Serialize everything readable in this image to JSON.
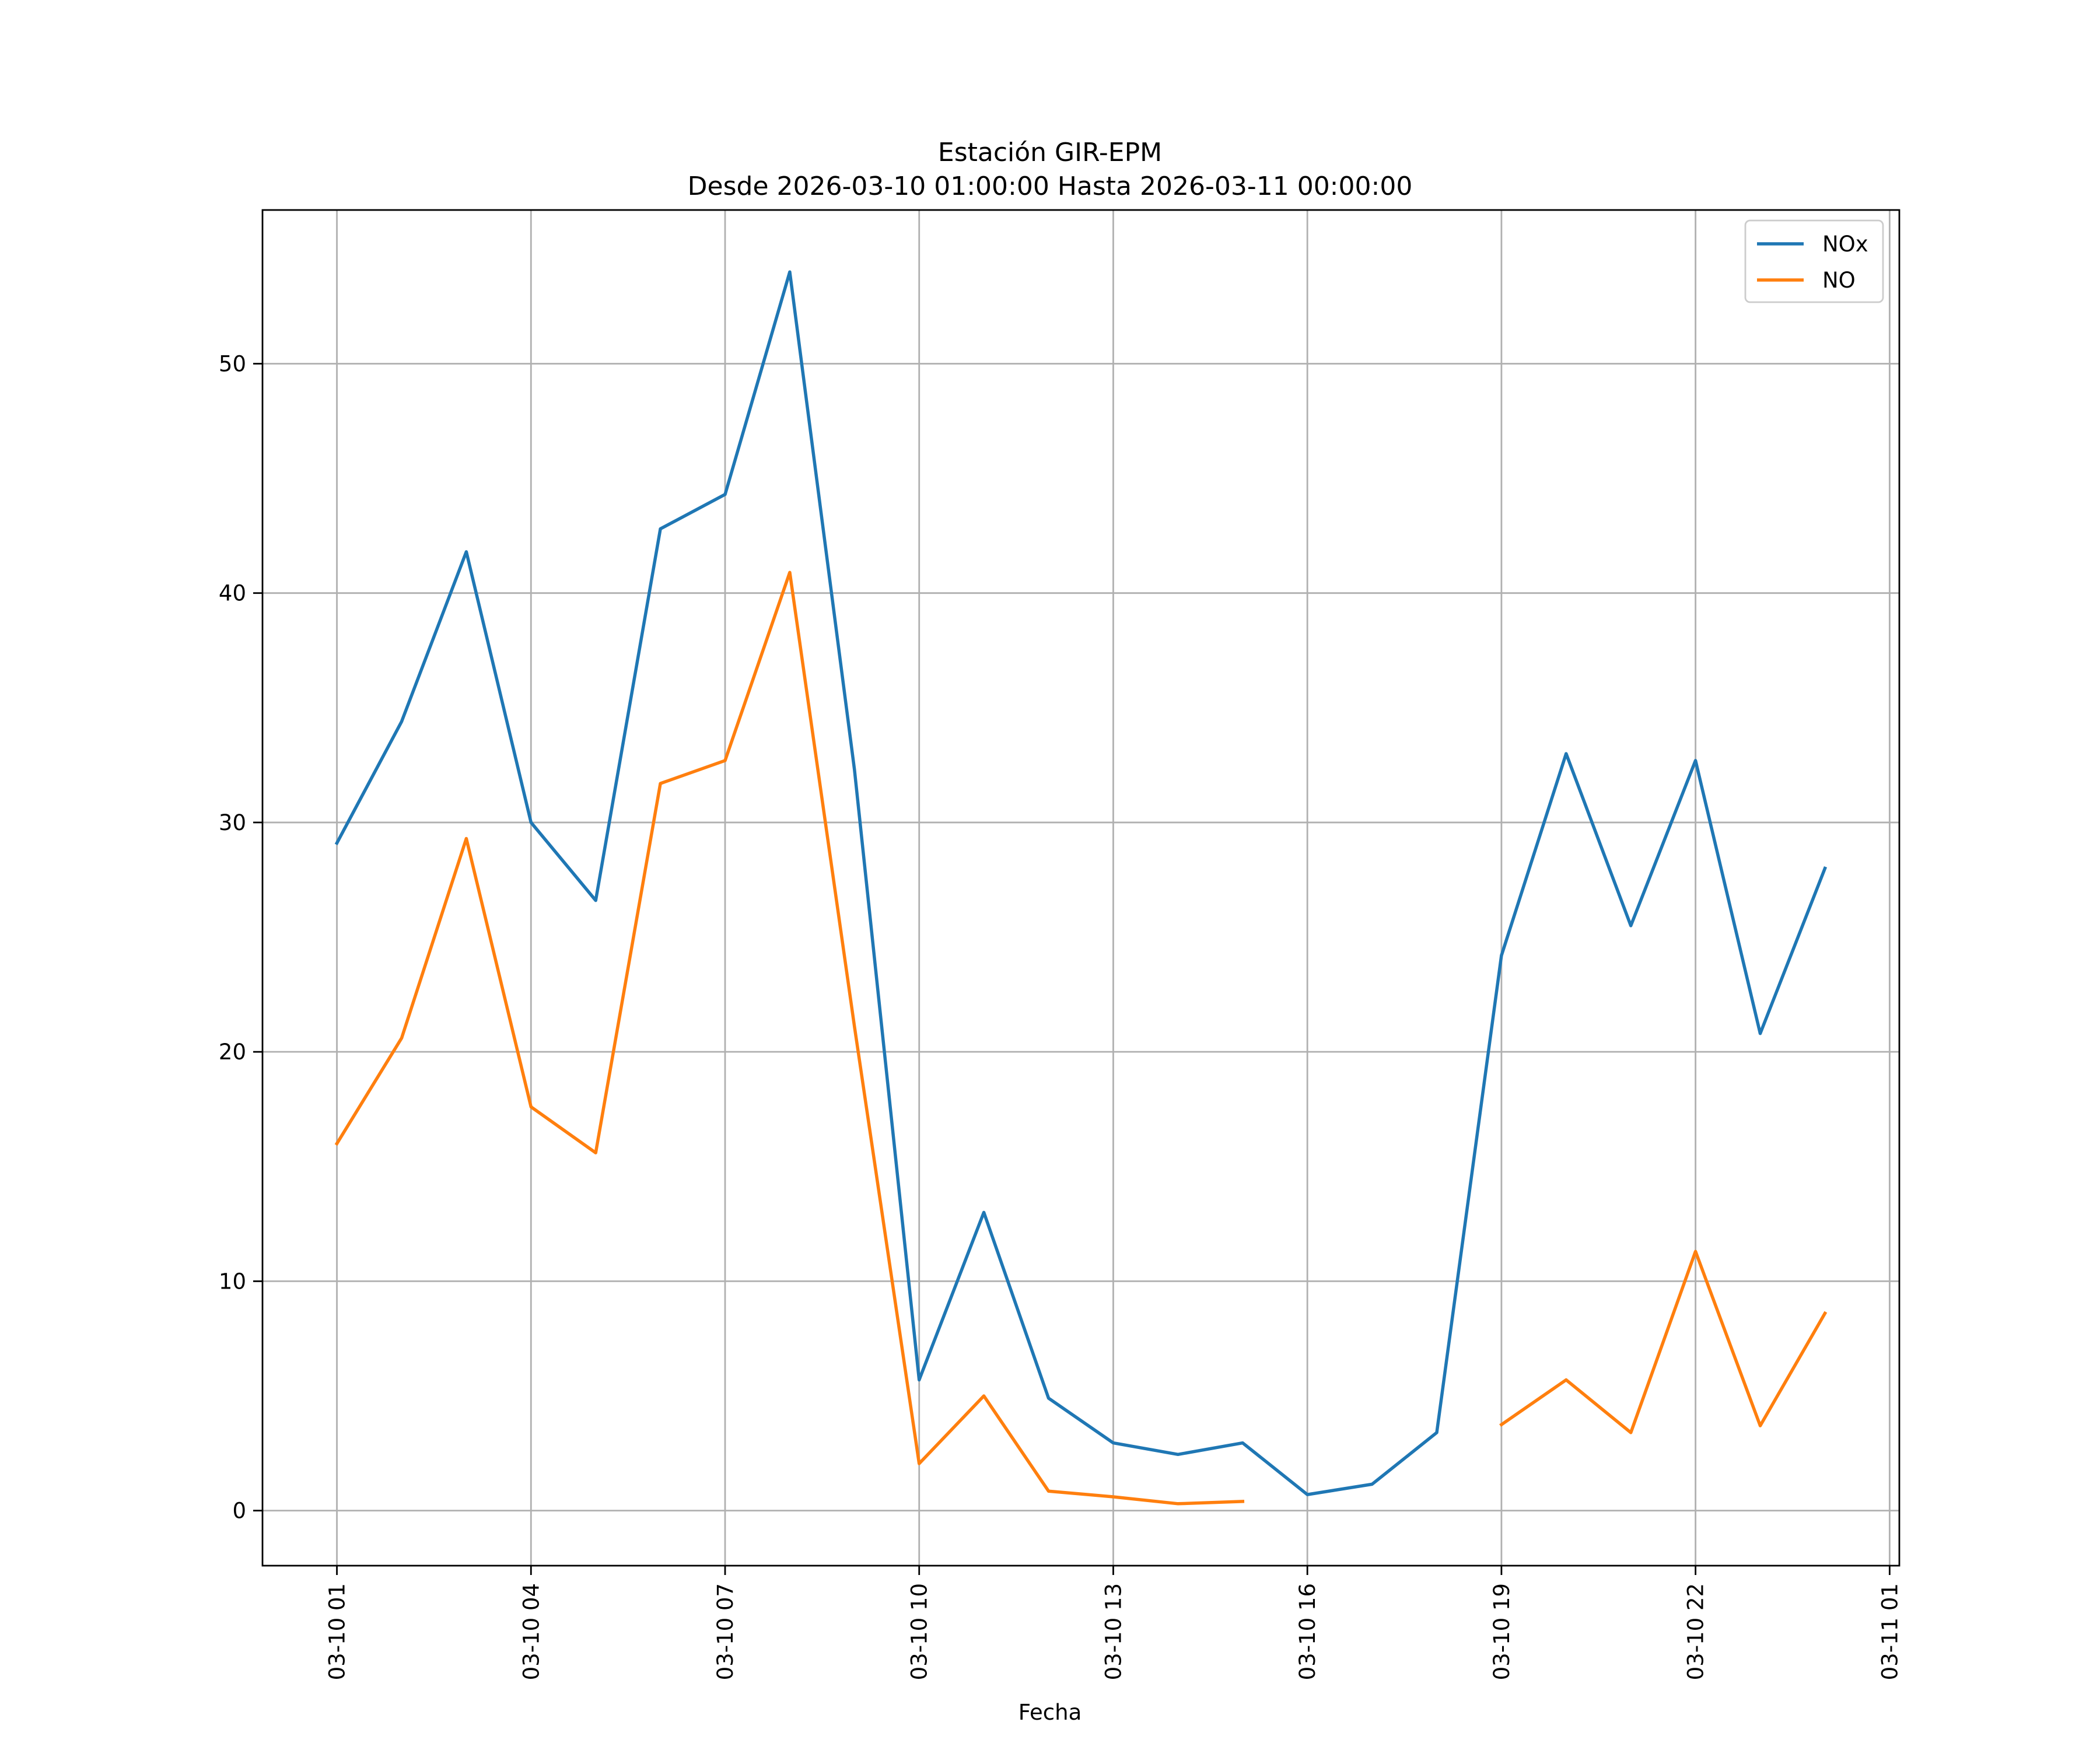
{
  "chart_data": {
    "type": "line",
    "title": "Estación GIR-EPM",
    "subtitle": "Desde 2026-03-10 01:00:00 Hasta 2026-03-11 00:00:00",
    "xlabel": "Fecha",
    "ylabel": "",
    "x": [
      "2026-03-10 01:00",
      "2026-03-10 02:00",
      "2026-03-10 03:00",
      "2026-03-10 04:00",
      "2026-03-10 05:00",
      "2026-03-10 06:00",
      "2026-03-10 07:00",
      "2026-03-10 08:00",
      "2026-03-10 09:00",
      "2026-03-10 10:00",
      "2026-03-10 11:00",
      "2026-03-10 12:00",
      "2026-03-10 13:00",
      "2026-03-10 14:00",
      "2026-03-10 15:00",
      "2026-03-10 16:00",
      "2026-03-10 17:00",
      "2026-03-10 18:00",
      "2026-03-10 19:00",
      "2026-03-10 20:00",
      "2026-03-10 21:00",
      "2026-03-10 22:00",
      "2026-03-10 23:00",
      "2026-03-11 00:00"
    ],
    "series": [
      {
        "name": "NOx",
        "color": "#1f77b4",
        "values": [
          29.1,
          34.4,
          41.8,
          30.0,
          26.6,
          42.8,
          44.3,
          54.0,
          32.3,
          5.7,
          13.0,
          4.9,
          2.95,
          2.45,
          2.95,
          0.7,
          1.15,
          3.4,
          24.2,
          33.0,
          25.5,
          32.7,
          20.8,
          28.0
        ]
      },
      {
        "name": "NO",
        "color": "#ff7f0e",
        "values": [
          16.0,
          20.6,
          29.3,
          17.6,
          15.6,
          31.7,
          32.7,
          40.9,
          21.1,
          2.05,
          5.0,
          0.85,
          0.6,
          0.3,
          0.4,
          null,
          null,
          null,
          3.75,
          5.7,
          3.4,
          11.3,
          3.7,
          8.6
        ]
      }
    ],
    "x_ticks": [
      "03-10 01",
      "03-10 04",
      "03-10 07",
      "03-10 10",
      "03-10 13",
      "03-10 16",
      "03-10 19",
      "03-10 22",
      "03-11 01"
    ],
    "xlim": [
      "2026-03-09 23:51",
      "2026-03-11 01:09"
    ],
    "y_ticks": [
      0,
      10,
      20,
      30,
      40,
      50
    ],
    "ylim": [
      -2.4,
      56.7
    ],
    "grid": true,
    "legend_position": "upper-right"
  }
}
